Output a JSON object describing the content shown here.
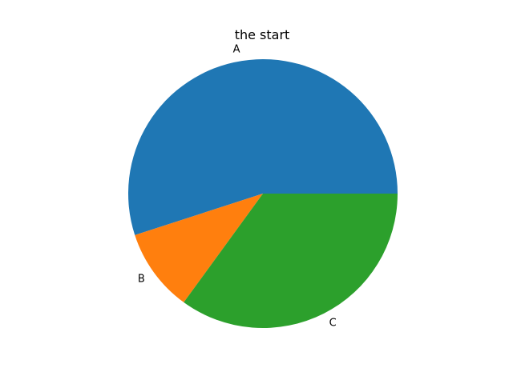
{
  "chart_data": {
    "type": "pie",
    "title": "the start",
    "labels": [
      "A",
      "B",
      "C"
    ],
    "values": [
      55,
      10,
      35
    ],
    "colors": [
      "#1f77b4",
      "#ff7f0e",
      "#2ca02c"
    ],
    "start_angle_deg": 0,
    "direction": "counterclockwise",
    "legend": "none"
  }
}
